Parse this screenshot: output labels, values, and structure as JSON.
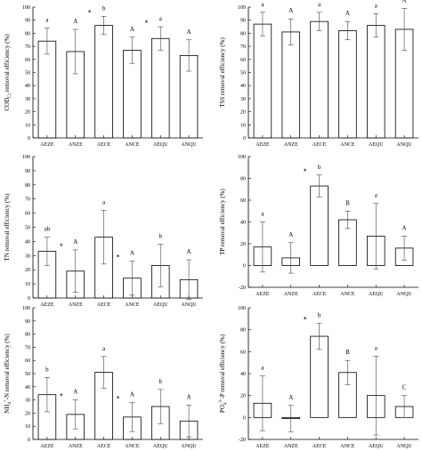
{
  "chart_data": [
    {
      "type": "bar",
      "ylabel_main": "COD",
      "ylabel_sub": "Cr",
      "ylabel_rest": " removal efficiency (%)",
      "ylim": [
        0,
        100
      ],
      "yticks": [
        0,
        10,
        20,
        30,
        40,
        50,
        60,
        70,
        80,
        90,
        100
      ],
      "categories": [
        "AEZE",
        "ANZE",
        "AECE",
        "ANCE",
        "AEQU",
        "ANQU"
      ],
      "values": [
        74,
        66,
        86,
        67,
        76,
        63
      ],
      "errors": [
        10,
        17,
        7,
        10,
        9,
        12
      ],
      "letters": [
        "a",
        "A",
        "b",
        "A",
        "a",
        "A"
      ],
      "stars": [
        false,
        false,
        true,
        false,
        true,
        false
      ]
    },
    {
      "type": "bar",
      "ylabel_main": "TSS removal efficiency (%)",
      "ylabel_sub": "",
      "ylabel_rest": "",
      "ylim": [
        0,
        100
      ],
      "yticks": [
        0,
        10,
        20,
        30,
        40,
        50,
        60,
        70,
        80,
        90,
        100
      ],
      "categories": [
        "AEZE",
        "ANZE",
        "AECE",
        "ANCE",
        "AEQU",
        "ANQU"
      ],
      "values": [
        87,
        81,
        89,
        82,
        86,
        83
      ],
      "errors": [
        9,
        10,
        7,
        7,
        9,
        16
      ],
      "letters": [
        "a",
        "A",
        "a",
        "A",
        "a",
        "A"
      ],
      "stars": [
        false,
        false,
        false,
        false,
        false,
        false
      ]
    },
    {
      "type": "bar",
      "ylabel_main": "TN removal efficiency (%)",
      "ylabel_sub": "",
      "ylabel_rest": "",
      "ylim": [
        0,
        100
      ],
      "yticks": [
        0,
        10,
        20,
        30,
        40,
        50,
        60,
        70,
        80,
        90,
        100
      ],
      "categories": [
        "AEZE",
        "ANZE",
        "AECE",
        "ANCE",
        "AEQU",
        "ANQU"
      ],
      "values": [
        33,
        19,
        43,
        14,
        23,
        13
      ],
      "errors": [
        10,
        15,
        19,
        12,
        15,
        14
      ],
      "letters": [
        "ab",
        "A",
        "a",
        "A",
        "b",
        "A"
      ],
      "stars": [
        false,
        true,
        false,
        true,
        false,
        false
      ]
    },
    {
      "type": "bar",
      "ylabel_main": "TP removal efficiency (%)",
      "ylabel_sub": "",
      "ylabel_rest": "",
      "ylim": [
        -20,
        100
      ],
      "yticks": [
        -20,
        0,
        20,
        40,
        60,
        80,
        100
      ],
      "categories": [
        "AEZE",
        "ANZE",
        "AECE",
        "ANCE",
        "AEQU",
        "ANQU"
      ],
      "values": [
        17,
        7,
        73,
        42,
        27,
        16
      ],
      "errors": [
        23,
        14,
        10,
        8,
        30,
        11
      ],
      "letters": [
        "a",
        "A",
        "b",
        "B",
        "a",
        "A"
      ],
      "stars": [
        false,
        false,
        true,
        false,
        false,
        false
      ]
    },
    {
      "type": "bar",
      "ylabel_main": "NH",
      "ylabel_sub": "4",
      "ylabel_sup": "+",
      "ylabel_rest": "-N removal efficiency (%)",
      "ylim": [
        0,
        100
      ],
      "yticks": [
        0,
        10,
        20,
        30,
        40,
        50,
        60,
        70,
        80,
        90,
        100
      ],
      "categories": [
        "AEZE",
        "ANZE",
        "AECE",
        "ANCE",
        "AEQU",
        "ANQU"
      ],
      "values": [
        34,
        19,
        51,
        17,
        25,
        14
      ],
      "errors": [
        13,
        11,
        12,
        11,
        13,
        12
      ],
      "letters": [
        "b",
        "A",
        "a",
        "A",
        "b",
        "A"
      ],
      "stars": [
        false,
        true,
        false,
        true,
        false,
        false
      ]
    },
    {
      "type": "bar",
      "ylabel_main": "PO",
      "ylabel_sub": "4",
      "ylabel_sup": "3-",
      "ylabel_rest": "-P removal efficiency (%)",
      "ylim": [
        -20,
        100
      ],
      "yticks": [
        -20,
        0,
        20,
        40,
        60,
        80,
        100
      ],
      "categories": [
        "AEZE",
        "ANZE",
        "AECE",
        "ANCE",
        "AEQU",
        "ANQU"
      ],
      "values": [
        13,
        -1,
        74,
        41,
        20,
        10
      ],
      "errors": [
        25,
        12,
        12,
        11,
        36,
        10
      ],
      "letters": [
        "a",
        "A",
        "b",
        "B",
        "a",
        "C"
      ],
      "stars": [
        false,
        false,
        true,
        false,
        false,
        false
      ]
    }
  ]
}
